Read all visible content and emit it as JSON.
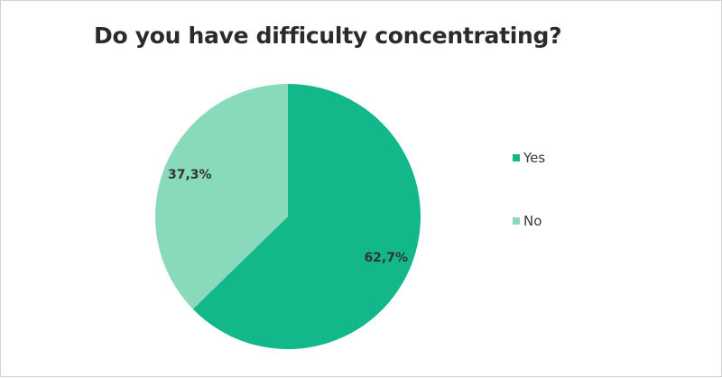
{
  "chart_data": {
    "type": "pie",
    "title": "Do you have difficulty concentrating?",
    "slices": [
      {
        "label": "Yes",
        "value": 62.7,
        "display": "62,7%",
        "color": "#13b88a"
      },
      {
        "label": "No",
        "value": 37.3,
        "display": "37,3%",
        "color": "#88dabb"
      }
    ],
    "start_angle_deg": 0,
    "direction": "clockwise",
    "legend_position": "right"
  }
}
